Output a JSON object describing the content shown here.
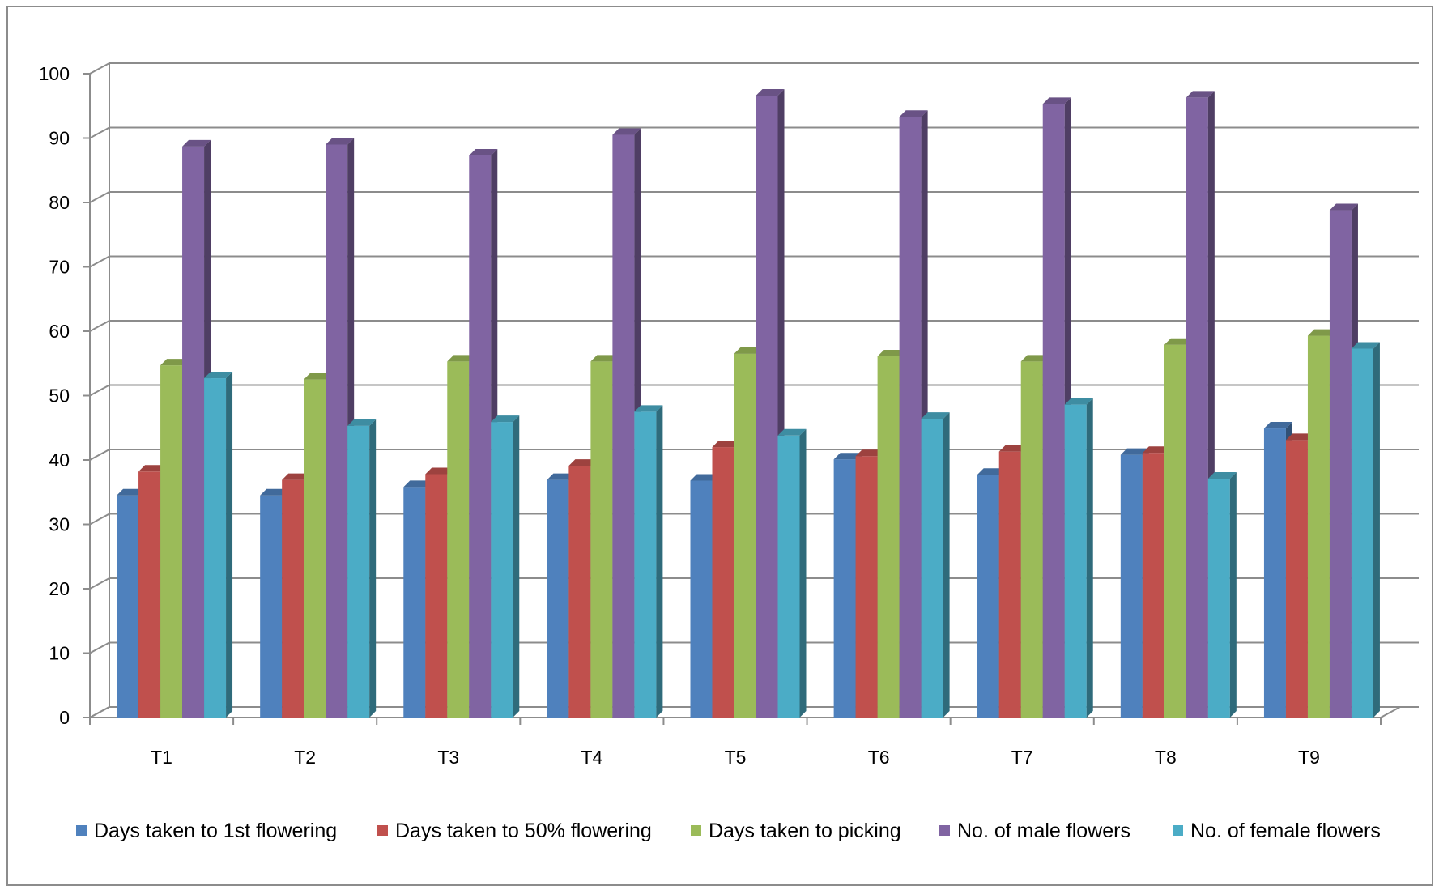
{
  "chart_data": {
    "type": "bar",
    "title": "",
    "xlabel": "",
    "ylabel": "",
    "ylim": [
      0,
      100
    ],
    "yticks": [
      0,
      10,
      20,
      30,
      40,
      50,
      60,
      70,
      80,
      90,
      100
    ],
    "grid": true,
    "legend_position": "bottom",
    "categories": [
      "T1",
      "T2",
      "T3",
      "T4",
      "T5",
      "T6",
      "T7",
      "T8",
      "T9"
    ],
    "series": [
      {
        "name": "Days taken to 1st flowering",
        "color": "#4F81BD",
        "values": [
          34.5,
          34.5,
          35.8,
          36.9,
          36.8,
          40.1,
          37.7,
          40.8,
          44.9
        ]
      },
      {
        "name": "Days taken to 50% flowering",
        "color": "#C0504D",
        "values": [
          38.2,
          36.9,
          37.8,
          39.1,
          42.0,
          40.6,
          41.3,
          41.1,
          43.1
        ]
      },
      {
        "name": "Days taken to picking",
        "color": "#9BBB59",
        "values": [
          54.7,
          52.5,
          55.3,
          55.3,
          56.5,
          56.1,
          55.3,
          57.9,
          59.3
        ]
      },
      {
        "name": "No. of male flowers",
        "color": "#8064A2",
        "values": [
          88.7,
          89.0,
          87.3,
          90.5,
          96.6,
          93.3,
          95.3,
          96.3,
          78.8
        ]
      },
      {
        "name": "No. of female flowers",
        "color": "#4BACC6",
        "values": [
          52.7,
          45.3,
          45.9,
          47.5,
          43.8,
          46.4,
          48.6,
          37.1,
          57.3
        ]
      }
    ]
  }
}
